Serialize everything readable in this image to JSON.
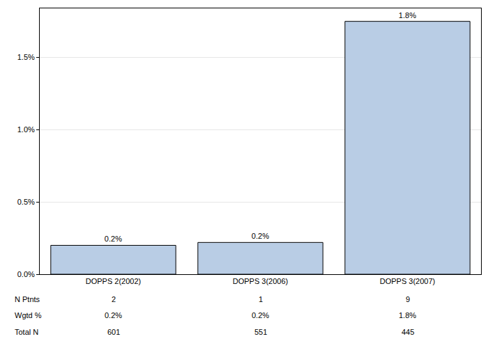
{
  "chart_data": {
    "type": "bar",
    "categories": [
      "DOPPS 2(2002)",
      "DOPPS 3(2006)",
      "DOPPS 3(2007)"
    ],
    "values": [
      0.2,
      0.22,
      1.75
    ],
    "value_labels": [
      "0.2%",
      "0.2%",
      "1.8%"
    ],
    "data_labels": true,
    "color": "#b9cde5",
    "ylim": [
      0,
      1.84
    ],
    "yticks": [
      {
        "value": 0,
        "label": "0.0%"
      },
      {
        "value": 0.5,
        "label": "0.5%"
      },
      {
        "value": 1,
        "label": "1.0%"
      },
      {
        "value": 1.5,
        "label": "1.5%"
      }
    ],
    "grid": true,
    "table_rows": [
      {
        "label": "N Ptnts",
        "values": [
          2,
          1,
          9
        ]
      },
      {
        "label": "Wgtd %",
        "values": [
          0.2,
          0.2,
          1.8
        ],
        "value_labels": [
          "0.2%",
          "0.2%",
          "1.8%"
        ]
      },
      {
        "label": "Total N",
        "values": [
          601,
          551,
          445
        ]
      }
    ]
  }
}
